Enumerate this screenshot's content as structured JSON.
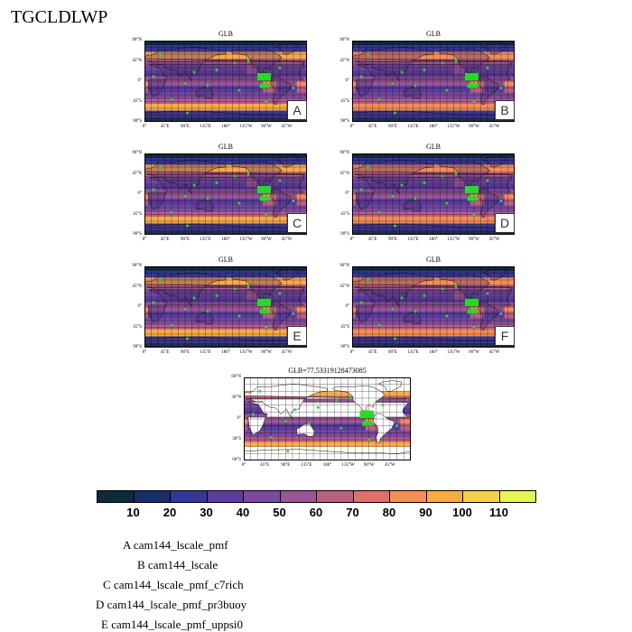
{
  "figure_title": "TGCLDLWP",
  "panels": [
    {
      "id": "A",
      "title": "GLB",
      "letter": "A"
    },
    {
      "id": "B",
      "title": "GLB",
      "letter": "B"
    },
    {
      "id": "C",
      "title": "GLB",
      "letter": "C"
    },
    {
      "id": "D",
      "title": "GLB",
      "letter": "D"
    },
    {
      "id": "E",
      "title": "GLB",
      "letter": "E"
    },
    {
      "id": "F",
      "title": "GLB",
      "letter": "F"
    },
    {
      "id": "OBS",
      "title": "GLB=77.53319128473085",
      "letter": ""
    }
  ],
  "lat_labels": [
    "90°N",
    "45°N",
    "0°",
    "45°S",
    "90°S"
  ],
  "lat_labels_obs": [
    "60°N",
    "30°N",
    "0°",
    "30°S",
    "60°S"
  ],
  "lon_labels": [
    "0°",
    "45°E",
    "90°E",
    "135°E",
    "180°",
    "135°W",
    "90°W",
    "45°W"
  ],
  "colorbar": {
    "labels": [
      "10",
      "20",
      "30",
      "40",
      "50",
      "60",
      "70",
      "80",
      "90",
      "100",
      "110"
    ],
    "colors": [
      "#0f2a3a",
      "#1a2e6e",
      "#34379a",
      "#5a3d9e",
      "#7b4a9c",
      "#9a5596",
      "#bb5f85",
      "#e0706a",
      "#f58e4e",
      "#fbab3e",
      "#f7d045",
      "#e8f550"
    ]
  },
  "legend": [
    "A  cam144_lscale_pmf",
    "B  cam144_lscale",
    "C  cam144_lscale_pmf_c7rich",
    "D  cam144_lscale_pmf_pr3buoy",
    "E  cam144_lscale_pmf_uppsi0"
  ]
}
